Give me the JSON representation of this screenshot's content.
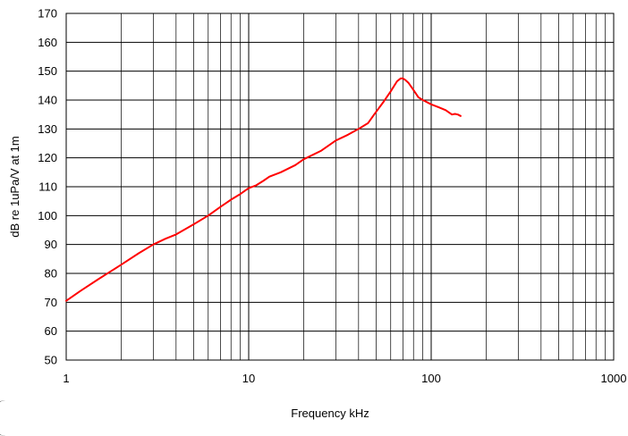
{
  "chart_data": {
    "type": "line",
    "title": "",
    "xlabel": "Frequency kHz",
    "ylabel": "dB re 1uPa/V at 1m",
    "x_scale": "log",
    "xlim": [
      1,
      1000
    ],
    "ylim": [
      50,
      170
    ],
    "x_ticks": [
      {
        "value": 1,
        "label": "1"
      },
      {
        "value": 10,
        "label": "10"
      },
      {
        "value": 100,
        "label": "100"
      },
      {
        "value": 1000,
        "label": "1000"
      }
    ],
    "y_ticks": [
      {
        "value": 50,
        "label": "50"
      },
      {
        "value": 60,
        "label": "60"
      },
      {
        "value": 70,
        "label": "70"
      },
      {
        "value": 80,
        "label": "80"
      },
      {
        "value": 90,
        "label": "90"
      },
      {
        "value": 100,
        "label": "100"
      },
      {
        "value": 110,
        "label": "110"
      },
      {
        "value": 120,
        "label": "120"
      },
      {
        "value": 130,
        "label": "130"
      },
      {
        "value": 140,
        "label": "140"
      },
      {
        "value": 150,
        "label": "150"
      },
      {
        "value": 160,
        "label": "160"
      },
      {
        "value": 170,
        "label": "170"
      }
    ],
    "grid": true,
    "series": [
      {
        "color": "#ff0000",
        "x": [
          1,
          1.2,
          1.5,
          2,
          2.5,
          3,
          3.5,
          4,
          5,
          6,
          7,
          8,
          9,
          10,
          11,
          12,
          13,
          15,
          18,
          20,
          25,
          30,
          35,
          40,
          45,
          50,
          55,
          60,
          65,
          68,
          70,
          72,
          75,
          80,
          85,
          90,
          100,
          110,
          120,
          130,
          135,
          140,
          145
        ],
        "y": [
          70.5,
          74,
          78,
          83,
          87,
          90,
          92,
          93.5,
          97,
          100,
          103,
          105.5,
          107.5,
          109.5,
          110.5,
          112,
          113.5,
          115,
          117.5,
          119.5,
          122.5,
          126,
          128,
          130,
          132,
          136,
          139.5,
          143,
          146.5,
          147.5,
          147.5,
          147,
          146,
          143.5,
          141,
          140,
          138.5,
          137.5,
          136.5,
          135,
          135.2,
          135,
          134.5
        ]
      }
    ]
  }
}
